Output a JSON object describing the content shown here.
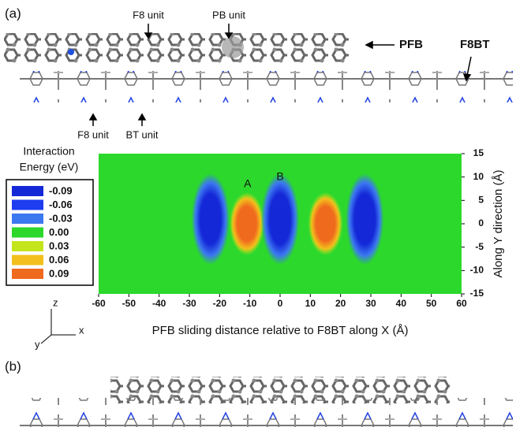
{
  "panel_labels": [
    "(a)",
    "(b)"
  ],
  "annotations": {
    "f8_unit_top": "F8 unit",
    "pb_unit": "PB unit",
    "pfb": "PFB",
    "f8bt": "F8BT",
    "f8_unit_bottom": "F8 unit",
    "bt_unit": "BT unit"
  },
  "axes_triad": {
    "z": "z",
    "x": "x",
    "y": "y"
  },
  "chart_data": {
    "type": "heatmap",
    "xlabel": "PFB sliding distance relative to F8BT along X (Å)",
    "ylabel": "Along Y direction (Å)",
    "xlim": [
      -60,
      60
    ],
    "ylim": [
      -15,
      15
    ],
    "xticks": [
      -60,
      -50,
      -40,
      -30,
      -20,
      -10,
      0,
      10,
      20,
      30,
      40,
      50,
      60
    ],
    "yticks": [
      -15,
      -10,
      -5,
      0,
      5,
      10,
      15
    ],
    "legend_title": [
      "Interaction",
      "Energy (eV)"
    ],
    "colorscale": [
      {
        "value": -0.09,
        "color": "#1428d8"
      },
      {
        "value": -0.06,
        "color": "#1e3cf0"
      },
      {
        "value": -0.03,
        "color": "#3c78f0"
      },
      {
        "value": 0,
        "label": "0.00",
        "color": "#2cd82c"
      },
      {
        "value": 0.03,
        "color": "#c4e41c"
      },
      {
        "value": 0.06,
        "color": "#f2c01c"
      },
      {
        "value": 0.09,
        "color": "#f06a1e"
      }
    ],
    "blobs": [
      {
        "x": -23,
        "value": -0.09
      },
      {
        "x": -11,
        "value": 0.09
      },
      {
        "x": 0,
        "value": -0.09
      },
      {
        "x": 15,
        "value": 0.09
      },
      {
        "x": 28,
        "value": -0.09
      }
    ],
    "point_labels": [
      {
        "text": "A",
        "x": -11
      },
      {
        "text": "B",
        "x": 0
      }
    ]
  }
}
